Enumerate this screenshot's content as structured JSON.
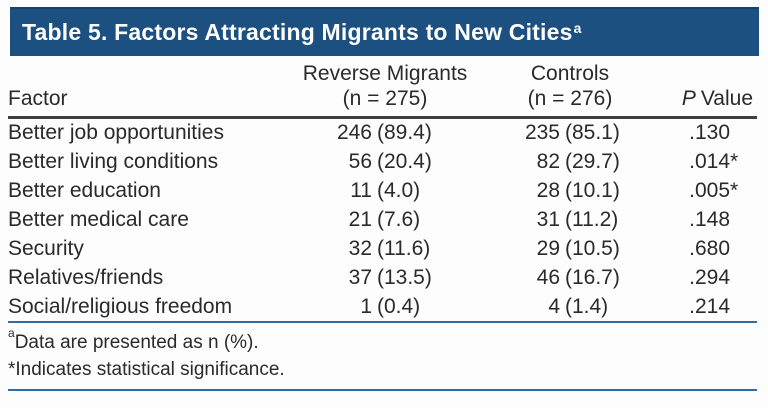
{
  "title": {
    "text": "Table 5. Factors Attracting Migrants to New Cities",
    "sup": "a"
  },
  "columns": {
    "factor": "Factor",
    "reverse_migrants": {
      "line1": "Reverse Migrants",
      "line2": "(n = 275)"
    },
    "controls": {
      "line1": "Controls",
      "line2": "(n = 276)"
    },
    "p_value": {
      "italic": "P",
      "rest": "Value"
    }
  },
  "rows": [
    {
      "factor": "Better job opportunities",
      "rm_n": "246",
      "rm_pct": "(89.4)",
      "c_n": "235",
      "c_pct": "(85.1)",
      "p": ".130",
      "sig": ""
    },
    {
      "factor": "Better living conditions",
      "rm_n": "56",
      "rm_pct": "(20.4)",
      "c_n": "82",
      "c_pct": "(29.7)",
      "p": ".014",
      "sig": "*"
    },
    {
      "factor": "Better education",
      "rm_n": "11",
      "rm_pct": "(4.0)",
      "c_n": "28",
      "c_pct": "(10.1)",
      "p": ".005",
      "sig": "*"
    },
    {
      "factor": "Better medical care",
      "rm_n": "21",
      "rm_pct": "(7.6)",
      "c_n": "31",
      "c_pct": "(11.2)",
      "p": ".148",
      "sig": ""
    },
    {
      "factor": "Security",
      "rm_n": "32",
      "rm_pct": "(11.6)",
      "c_n": "29",
      "c_pct": "(10.5)",
      "p": ".680",
      "sig": ""
    },
    {
      "factor": "Relatives/friends",
      "rm_n": "37",
      "rm_pct": "(13.5)",
      "c_n": "46",
      "c_pct": "(16.7)",
      "p": ".294",
      "sig": ""
    },
    {
      "factor": "Social/religious freedom",
      "rm_n": "1",
      "rm_pct": "(0.4)",
      "c_n": "4",
      "c_pct": "(1.4)",
      "p": ".214",
      "sig": ""
    }
  ],
  "footnotes": {
    "a_sup": "a",
    "a_text": "Data are presented as n (%).",
    "b_text": "*Indicates statistical significance."
  },
  "colors": {
    "title_bar_bg": "#1c5080",
    "title_bar_top_border": "#16456b",
    "title_text": "#ffffff",
    "header_rule": "#3f3f3f",
    "blue_rule": "#2e6ca5",
    "body_text": "#2a2a2a"
  },
  "chart_data": {
    "type": "table",
    "title": "Table 5. Factors Attracting Migrants to New Cities",
    "columns": [
      "Factor",
      "Reverse Migrants (n = 275)",
      "Controls (n = 276)",
      "P Value"
    ],
    "rows": [
      [
        "Better job opportunities",
        "246 (89.4)",
        "235 (85.1)",
        ".130"
      ],
      [
        "Better living conditions",
        "56 (20.4)",
        "82 (29.7)",
        ".014*"
      ],
      [
        "Better education",
        "11 (4.0)",
        "28 (10.1)",
        ".005*"
      ],
      [
        "Better medical care",
        "21 (7.6)",
        "31 (11.2)",
        ".148"
      ],
      [
        "Security",
        "32 (11.6)",
        "29 (10.5)",
        ".680"
      ],
      [
        "Relatives/friends",
        "37 (13.5)",
        "46 (16.7)",
        ".294"
      ],
      [
        "Social/religious freedom",
        "1 (0.4)",
        "4 (1.4)",
        ".214"
      ]
    ],
    "footnotes": [
      "aData are presented as n (%).",
      "*Indicates statistical significance."
    ]
  }
}
